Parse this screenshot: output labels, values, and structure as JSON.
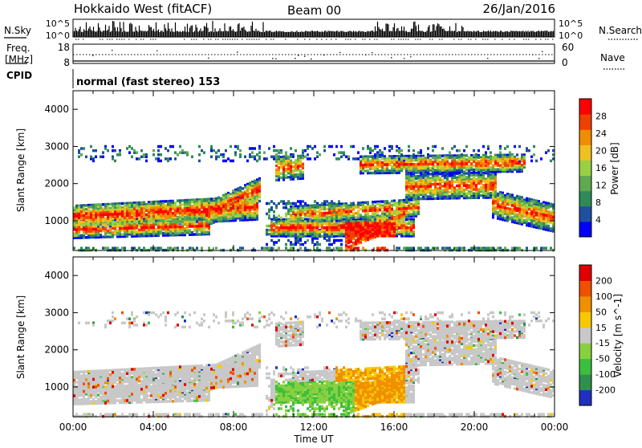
{
  "header": {
    "title": "Hokkaido West (fitACF)",
    "beam": "Beam 00",
    "date": "26/Jan/2016"
  },
  "noise_panel": {
    "left_label": "N.Sky",
    "right_label": "N.Search",
    "y_ticks_left": [
      "10^5",
      "10^0"
    ],
    "y_ticks_right": [
      "10^5",
      "10^0"
    ]
  },
  "freq_panel": {
    "left_label_1": "Freq.",
    "left_label_2": "[MHz]",
    "right_label": "Nave",
    "y_ticks_left": [
      "18",
      "8"
    ],
    "y_ticks_right": [
      "60",
      "0"
    ]
  },
  "cpid": {
    "label": "CPID",
    "mode": "normal (fast stereo) 153"
  },
  "chart_data": [
    {
      "type": "heatmap",
      "variable": "Power",
      "ylabel": "Slant Range [km]",
      "colorbar_label": "Power [dB]",
      "colorbar_ticks": [
        "28",
        "24",
        "20",
        "16",
        "12",
        "8",
        "4"
      ],
      "ylim": [
        200,
        4500
      ],
      "yticks": [
        "4000",
        "3000",
        "2000",
        "1000"
      ],
      "colors": [
        "#0000ff",
        "#1e50a0",
        "#2e8b57",
        "#5faa50",
        "#98d044",
        "#f0c020",
        "#f08c00",
        "#f04000",
        "#ff0000"
      ]
    },
    {
      "type": "heatmap",
      "variable": "Velocity",
      "ylabel": "Slant Range [km]",
      "colorbar_label": "Velocity [m s^-1]",
      "colorbar_ticks": [
        "200",
        "100",
        "50",
        "15",
        "-15",
        "-50",
        "-100",
        "-200"
      ],
      "ylim": [
        200,
        4500
      ],
      "yticks": [
        "4000",
        "3000",
        "2000",
        "1000"
      ],
      "xlabel": "Time UT",
      "xticks": [
        "00:00",
        "04:00",
        "08:00",
        "12:00",
        "16:00",
        "20:00",
        "00:00"
      ],
      "colors": [
        "#2030c0",
        "#2f8f4f",
        "#3cbf3c",
        "#88d040",
        "#c8c8c8",
        "#f8c800",
        "#f09000",
        "#f05000",
        "#e00000"
      ]
    }
  ]
}
